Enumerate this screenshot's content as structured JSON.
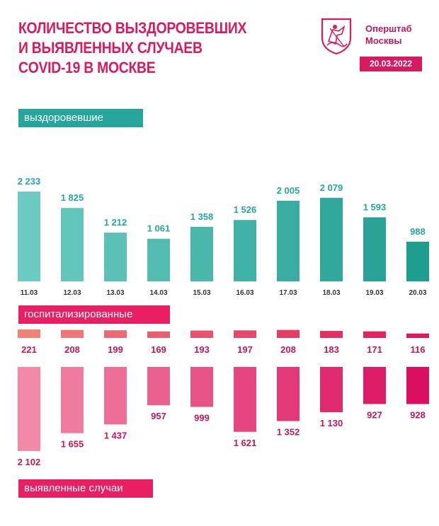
{
  "header": {
    "title_lines": [
      "КОЛИЧЕСТВО ВЫЗДОРОВЕВШИХ",
      "И ВЫЯВЛЕННЫХ СЛУЧАЕВ",
      "COVID-19 В МОСКВЕ"
    ],
    "brand_lines": [
      "Оперштаб",
      "Москвы"
    ],
    "date": "20.03.2022",
    "logo_icon": "moscow-coat-of-arms-icon"
  },
  "sections": {
    "recovered_label": "выздоровевшие",
    "hospitalized_label": "госпитализированные",
    "cases_label": "выявленные случаи"
  },
  "colors": {
    "accent": "#d81b60",
    "recovered_light": "#6ccbc2",
    "recovered_dark": "#1f9e90",
    "pink_light": "#f28aa7",
    "pink_dark": "#db0f5f",
    "hosp_light": "#f0827a",
    "hosp_dark": "#e0175a",
    "recovered_text": "#26a69a",
    "pink_text": "#c2185b"
  },
  "chart_data": {
    "type": "bar",
    "categories": [
      "11.03",
      "12.03",
      "13.03",
      "14.03",
      "15.03",
      "16.03",
      "17.03",
      "18.03",
      "19.03",
      "20.03"
    ],
    "series": [
      {
        "name": "выздоровевшие",
        "values": [
          2233,
          1825,
          1212,
          1061,
          1358,
          1526,
          2005,
          2079,
          1593,
          988
        ],
        "labels": [
          "2 233",
          "1 825",
          "1 212",
          "1 061",
          "1 358",
          "1 526",
          "2 005",
          "2 079",
          "1 593",
          "988"
        ]
      },
      {
        "name": "госпитализированные",
        "values": [
          221,
          208,
          199,
          169,
          193,
          197,
          208,
          183,
          171,
          116
        ],
        "labels": [
          "221",
          "208",
          "199",
          "169",
          "193",
          "197",
          "208",
          "183",
          "171",
          "116"
        ]
      },
      {
        "name": "выявленные случаи",
        "values": [
          2102,
          1655,
          1437,
          957,
          999,
          1621,
          1352,
          1130,
          927,
          928
        ],
        "labels": [
          "2 102",
          "1 655",
          "1 437",
          "957",
          "999",
          "1 621",
          "1 352",
          "1 130",
          "927",
          "928"
        ]
      }
    ]
  }
}
